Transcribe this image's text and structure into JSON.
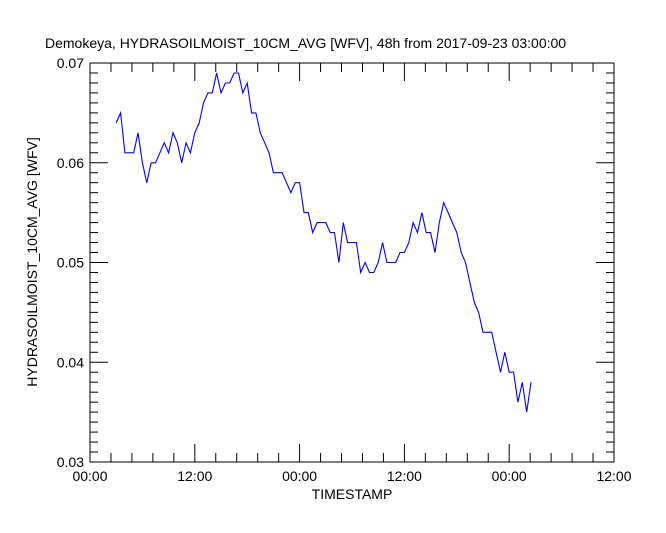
{
  "chart_data": {
    "type": "line",
    "title": "Demokeya, HYDRASOILMOIST_10CM_AVG [WFV], 48h from  2017-09-23 03:00:00",
    "xlabel": "TIMESTAMP",
    "ylabel": "HYDRASOILMOIST_10CM_AVG [WFV]",
    "xlim_hours": [
      0,
      60
    ],
    "ylim": [
      0.03,
      0.07
    ],
    "x_ticks": [
      "00:00",
      "12:00",
      "00:00",
      "12:00",
      "00:00",
      "12:00"
    ],
    "y_ticks": [
      "0.03",
      "0.04",
      "0.05",
      "0.06",
      "0.07"
    ],
    "y_tick_values": [
      0.03,
      0.04,
      0.05,
      0.06,
      0.07
    ],
    "grid": false,
    "series": [
      {
        "name": "HYDRASOILMOIST_10CM_AVG",
        "color": "#0000ff",
        "x_start_hours": 3,
        "x_step_hours": 0.5,
        "values": [
          0.064,
          0.065,
          0.061,
          0.061,
          0.061,
          0.063,
          0.06,
          0.058,
          0.06,
          0.06,
          0.061,
          0.062,
          0.061,
          0.063,
          0.062,
          0.06,
          0.062,
          0.061,
          0.063,
          0.064,
          0.066,
          0.067,
          0.067,
          0.069,
          0.067,
          0.068,
          0.068,
          0.069,
          0.069,
          0.067,
          0.068,
          0.065,
          0.065,
          0.063,
          0.062,
          0.061,
          0.059,
          0.059,
          0.059,
          0.058,
          0.057,
          0.058,
          0.058,
          0.055,
          0.055,
          0.053,
          0.054,
          0.054,
          0.054,
          0.053,
          0.053,
          0.05,
          0.054,
          0.052,
          0.052,
          0.052,
          0.049,
          0.05,
          0.049,
          0.049,
          0.05,
          0.052,
          0.05,
          0.05,
          0.05,
          0.051,
          0.051,
          0.052,
          0.054,
          0.053,
          0.055,
          0.053,
          0.053,
          0.051,
          0.054,
          0.056,
          0.055,
          0.054,
          0.053,
          0.051,
          0.05,
          0.048,
          0.046,
          0.045,
          0.043,
          0.043,
          0.043,
          0.041,
          0.039,
          0.041,
          0.039,
          0.039,
          0.036,
          0.038,
          0.035,
          0.038
        ]
      }
    ]
  }
}
